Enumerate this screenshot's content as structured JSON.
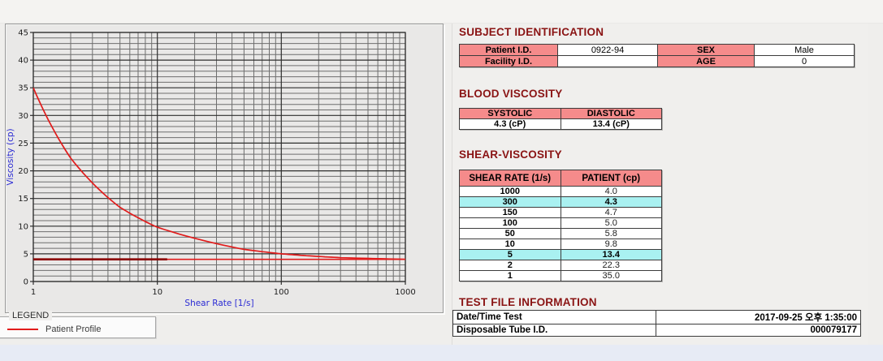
{
  "chart_data": {
    "type": "line",
    "title": "",
    "xlabel": "Shear Rate [1/s]",
    "ylabel": "Viscosity (cp)",
    "x_scale": "log",
    "xlim": [
      1,
      1000
    ],
    "ylim": [
      0,
      45
    ],
    "x_ticks": [
      1,
      10,
      100,
      1000
    ],
    "y_tick_step": 5,
    "y_minor_step": 1,
    "grid": true,
    "legend_title": "LEGEND",
    "legend_position": "bottom-left",
    "axis_label_color": "#2b2bd4",
    "series": [
      {
        "name": "Patient Profile",
        "color": "#e11b1b",
        "style": "smooth",
        "x": [
          1,
          2,
          5,
          10,
          50,
          100,
          150,
          300,
          1000
        ],
        "y": [
          35.0,
          22.3,
          13.4,
          9.8,
          5.8,
          5.0,
          4.7,
          4.3,
          4.0
        ]
      },
      {
        "name": "baseline-4cp",
        "color": "#e11b1b",
        "style": "line",
        "x": [
          1,
          1000
        ],
        "y": [
          4.0,
          4.0
        ]
      },
      {
        "name": "baseline-dark-segment",
        "color": "#8b0000",
        "style": "line",
        "x": [
          1,
          12
        ],
        "y": [
          4.0,
          4.0
        ]
      }
    ]
  },
  "sections": {
    "subject": {
      "title": "SUBJECT IDENTIFICATION",
      "rows": [
        {
          "label": "Patient I.D.",
          "value": "0922-94",
          "label2": "SEX",
          "value2": "Male"
        },
        {
          "label": "Facility I.D.",
          "value": "",
          "label2": "AGE",
          "value2": "0"
        }
      ]
    },
    "blood": {
      "title": "BLOOD VISCOSITY",
      "headers": [
        "SYSTOLIC",
        "DIASTOLIC"
      ],
      "values": [
        "4.3 (cP)",
        "13.4 (cP)"
      ]
    },
    "shear": {
      "title": "SHEAR-VISCOSITY",
      "headers": [
        "SHEAR RATE (1/s)",
        "PATIENT (cp)"
      ],
      "rows": [
        {
          "rate": "1000",
          "value": "4.0",
          "highlight": false
        },
        {
          "rate": "300",
          "value": "4.3",
          "highlight": true
        },
        {
          "rate": "150",
          "value": "4.7",
          "highlight": false
        },
        {
          "rate": "100",
          "value": "5.0",
          "highlight": false
        },
        {
          "rate": "50",
          "value": "5.8",
          "highlight": false
        },
        {
          "rate": "10",
          "value": "9.8",
          "highlight": false
        },
        {
          "rate": "5",
          "value": "13.4",
          "highlight": true
        },
        {
          "rate": "2",
          "value": "22.3",
          "highlight": false
        },
        {
          "rate": "1",
          "value": "35.0",
          "highlight": false
        }
      ]
    },
    "test_file": {
      "title": "TEST FILE INFORMATION",
      "rows": [
        {
          "label": "Date/Time Test",
          "value": "2017-09-25  오후 1:35:00"
        },
        {
          "label": "Disposable Tube I.D.",
          "value": "000079177"
        }
      ]
    }
  },
  "colors": {
    "section_title": "#8a1414",
    "table_header_bg": "#f58b8b",
    "highlight_bg": "#a9f1f1",
    "series_red": "#e11b1b",
    "axis_label_blue": "#2b2bd4"
  }
}
